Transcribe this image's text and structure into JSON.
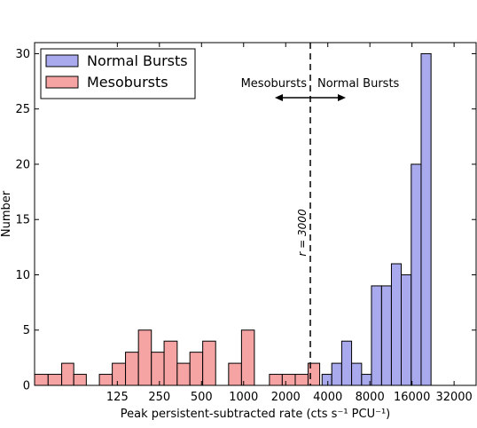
{
  "chart_data": {
    "type": "bar",
    "xlabel": "Peak persistent-subtracted rate (cts s⁻¹  PCU⁻¹)",
    "ylabel": "Number",
    "x_scale": "log2",
    "xlim": [
      32,
      46000
    ],
    "ylim": [
      0,
      31
    ],
    "xticks": [
      125,
      250,
      500,
      1000,
      2000,
      4000,
      8000,
      16000,
      32000
    ],
    "xtick_labels": [
      "125",
      "250",
      "500",
      "1000",
      "2000",
      "4000",
      "8000",
      "16000",
      "32000"
    ],
    "yticks": [
      0,
      5,
      10,
      15,
      20,
      25,
      30
    ],
    "ytick_labels": [
      "0",
      "5",
      "10",
      "15",
      "20",
      "25",
      "30"
    ],
    "legend_position": "top-left",
    "series": [
      {
        "name": "Normal Bursts",
        "color": "#a9a9ee",
        "bins": [
          [
            3640,
            4270,
            1
          ],
          [
            4270,
            5030,
            2
          ],
          [
            5030,
            5920,
            4
          ],
          [
            5920,
            6980,
            2
          ],
          [
            6980,
            8210,
            1
          ],
          [
            8210,
            9700,
            9
          ],
          [
            9700,
            11400,
            9
          ],
          [
            11400,
            13400,
            11
          ],
          [
            13400,
            15800,
            10
          ],
          [
            15800,
            18600,
            20
          ],
          [
            18600,
            21900,
            30
          ]
        ]
      },
      {
        "name": "Mesobursts",
        "color": "#f5a3a3",
        "bins": [
          [
            32,
            40,
            1
          ],
          [
            40,
            50,
            1
          ],
          [
            50,
            61,
            2
          ],
          [
            61,
            75,
            1
          ],
          [
            93,
            115,
            1
          ],
          [
            115,
            143,
            2
          ],
          [
            143,
            177,
            3
          ],
          [
            177,
            219,
            5
          ],
          [
            219,
            270,
            3
          ],
          [
            270,
            335,
            4
          ],
          [
            335,
            413,
            2
          ],
          [
            413,
            510,
            3
          ],
          [
            510,
            631,
            4
          ],
          [
            781,
            966,
            2
          ],
          [
            966,
            1194,
            5
          ],
          [
            1530,
            1890,
            1
          ],
          [
            1890,
            2340,
            1
          ],
          [
            2340,
            2890,
            1
          ],
          [
            2890,
            3500,
            2
          ]
        ]
      }
    ],
    "threshold": {
      "value": 3000,
      "label": "r = 3000",
      "left_text": "Mesobursts",
      "right_text": "Normal Bursts"
    }
  }
}
